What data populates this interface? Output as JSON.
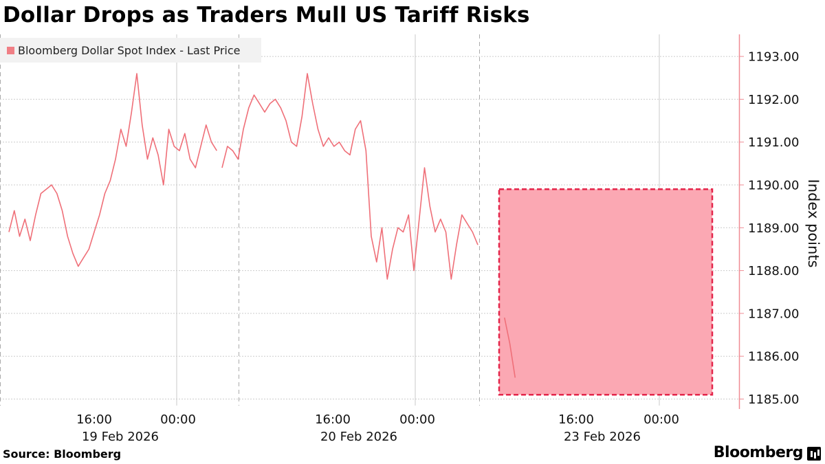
{
  "title": "Dollar Drops as Traders Mull US Tariff Risks",
  "source": "Source:  Bloomberg",
  "brand": "Bloomberg",
  "colors": {
    "line": "#ef6f78",
    "box_fill": "#fba8b3",
    "box_border": "#e4254a",
    "axis": "#ef8b93",
    "grid": "#cccccc"
  },
  "chart_data": {
    "type": "line",
    "legend": [
      "Bloomberg Dollar Spot Index - Last Price"
    ],
    "legend_position": "top-left",
    "ylabel": "Index points",
    "ylim": [
      1185.0,
      1193.5
    ],
    "y_ticks": [
      "1185.00",
      "1186.00",
      "1187.00",
      "1188.00",
      "1189.00",
      "1190.00",
      "1191.00",
      "1192.00",
      "1193.00"
    ],
    "x_ticks": [
      {
        "time": "16:00",
        "date": "19 Feb 2026"
      },
      {
        "time": "00:00",
        "date": ""
      },
      {
        "time": "16:00",
        "date": "20 Feb 2026"
      },
      {
        "time": "00:00",
        "date": ""
      },
      {
        "time": "16:00",
        "date": "23 Feb 2026"
      },
      {
        "time": "00:00",
        "date": ""
      }
    ],
    "grid": true,
    "highlight_box": {
      "x_from": "21 Feb 2026 06:00",
      "x_to": "22 Feb 2026 02:00",
      "y_from": 1185.1,
      "y_to": 1189.9
    },
    "series": [
      {
        "name": "Bloomberg Dollar Spot Index - Last Price",
        "segments": [
          [
            [
              "19 Feb 2026 08:00",
              1188.9
            ],
            [
              "19 Feb 2026 08:30",
              1189.4
            ],
            [
              "19 Feb 2026 09:00",
              1188.8
            ],
            [
              "19 Feb 2026 09:30",
              1189.2
            ],
            [
              "19 Feb 2026 10:00",
              1188.7
            ],
            [
              "19 Feb 2026 10:30",
              1189.3
            ],
            [
              "19 Feb 2026 11:00",
              1189.8
            ],
            [
              "19 Feb 2026 11:30",
              1189.9
            ],
            [
              "19 Feb 2026 12:00",
              1190.0
            ],
            [
              "19 Feb 2026 12:30",
              1189.8
            ],
            [
              "19 Feb 2026 13:00",
              1189.4
            ],
            [
              "19 Feb 2026 13:30",
              1188.8
            ],
            [
              "19 Feb 2026 14:00",
              1188.4
            ],
            [
              "19 Feb 2026 14:30",
              1188.1
            ],
            [
              "19 Feb 2026 15:00",
              1188.3
            ],
            [
              "19 Feb 2026 15:30",
              1188.5
            ],
            [
              "19 Feb 2026 16:00",
              1188.9
            ],
            [
              "19 Feb 2026 16:30",
              1189.3
            ],
            [
              "19 Feb 2026 17:00",
              1189.8
            ],
            [
              "19 Feb 2026 17:30",
              1190.1
            ],
            [
              "19 Feb 2026 18:00",
              1190.6
            ],
            [
              "19 Feb 2026 18:30",
              1191.3
            ],
            [
              "19 Feb 2026 19:00",
              1190.9
            ],
            [
              "19 Feb 2026 19:30",
              1191.7
            ],
            [
              "19 Feb 2026 20:00",
              1192.6
            ],
            [
              "19 Feb 2026 20:30",
              1191.4
            ],
            [
              "19 Feb 2026 21:00",
              1190.6
            ],
            [
              "19 Feb 2026 21:30",
              1191.1
            ],
            [
              "19 Feb 2026 22:00",
              1190.7
            ],
            [
              "19 Feb 2026 22:30",
              1190.0
            ],
            [
              "19 Feb 2026 23:00",
              1191.3
            ],
            [
              "19 Feb 2026 23:30",
              1190.9
            ],
            [
              "20 Feb 2026 00:00",
              1190.8
            ],
            [
              "20 Feb 2026 00:30",
              1191.2
            ],
            [
              "20 Feb 2026 01:00",
              1190.6
            ],
            [
              "20 Feb 2026 01:30",
              1190.4
            ],
            [
              "20 Feb 2026 02:00",
              1190.9
            ],
            [
              "20 Feb 2026 02:30",
              1191.4
            ],
            [
              "20 Feb 2026 03:00",
              1191.0
            ],
            [
              "20 Feb 2026 03:30",
              1190.8
            ]
          ],
          [
            [
              "20 Feb 2026 04:00",
              1190.4
            ],
            [
              "20 Feb 2026 04:30",
              1190.9
            ],
            [
              "20 Feb 2026 05:00",
              1190.8
            ],
            [
              "20 Feb 2026 05:30",
              1190.6
            ],
            [
              "20 Feb 2026 06:00",
              1191.3
            ],
            [
              "20 Feb 2026 06:30",
              1191.8
            ],
            [
              "20 Feb 2026 07:00",
              1192.1
            ],
            [
              "20 Feb 2026 07:30",
              1191.9
            ],
            [
              "20 Feb 2026 08:00",
              1191.7
            ],
            [
              "20 Feb 2026 08:30",
              1191.9
            ],
            [
              "20 Feb 2026 09:00",
              1192.0
            ],
            [
              "20 Feb 2026 09:30",
              1191.8
            ],
            [
              "20 Feb 2026 10:00",
              1191.5
            ],
            [
              "20 Feb 2026 10:30",
              1191.0
            ],
            [
              "20 Feb 2026 11:00",
              1190.9
            ],
            [
              "20 Feb 2026 11:30",
              1191.6
            ],
            [
              "20 Feb 2026 12:00",
              1192.6
            ],
            [
              "20 Feb 2026 12:30",
              1191.9
            ],
            [
              "20 Feb 2026 13:00",
              1191.3
            ],
            [
              "20 Feb 2026 13:30",
              1190.9
            ],
            [
              "20 Feb 2026 14:00",
              1191.1
            ],
            [
              "20 Feb 2026 14:30",
              1190.9
            ],
            [
              "20 Feb 2026 15:00",
              1191.0
            ],
            [
              "20 Feb 2026 15:30",
              1190.8
            ],
            [
              "20 Feb 2026 16:00",
              1190.7
            ],
            [
              "20 Feb 2026 16:30",
              1191.3
            ],
            [
              "20 Feb 2026 17:00",
              1191.5
            ],
            [
              "20 Feb 2026 17:30",
              1190.8
            ],
            [
              "20 Feb 2026 18:00",
              1188.8
            ],
            [
              "20 Feb 2026 18:30",
              1188.2
            ],
            [
              "20 Feb 2026 19:00",
              1189.0
            ],
            [
              "20 Feb 2026 19:30",
              1187.8
            ],
            [
              "20 Feb 2026 20:00",
              1188.5
            ],
            [
              "20 Feb 2026 20:30",
              1189.0
            ],
            [
              "20 Feb 2026 21:00",
              1188.9
            ],
            [
              "20 Feb 2026 21:30",
              1189.3
            ],
            [
              "20 Feb 2026 22:00",
              1188.0
            ],
            [
              "20 Feb 2026 22:30",
              1189.2
            ],
            [
              "20 Feb 2026 23:00",
              1190.4
            ],
            [
              "20 Feb 2026 23:30",
              1189.5
            ],
            [
              "21 Feb 2026 00:00",
              1188.9
            ],
            [
              "21 Feb 2026 00:30",
              1189.2
            ],
            [
              "21 Feb 2026 01:00",
              1188.9
            ],
            [
              "21 Feb 2026 01:30",
              1187.8
            ],
            [
              "21 Feb 2026 02:00",
              1188.6
            ],
            [
              "21 Feb 2026 02:30",
              1189.3
            ],
            [
              "21 Feb 2026 03:00",
              1189.1
            ],
            [
              "21 Feb 2026 03:30",
              1188.9
            ],
            [
              "21 Feb 2026 04:00",
              1188.6
            ]
          ],
          [
            [
              "21 Feb 2026 06:30",
              1186.9
            ],
            [
              "21 Feb 2026 07:00",
              1186.3
            ],
            [
              "21 Feb 2026 07:30",
              1185.5
            ]
          ]
        ]
      }
    ]
  }
}
